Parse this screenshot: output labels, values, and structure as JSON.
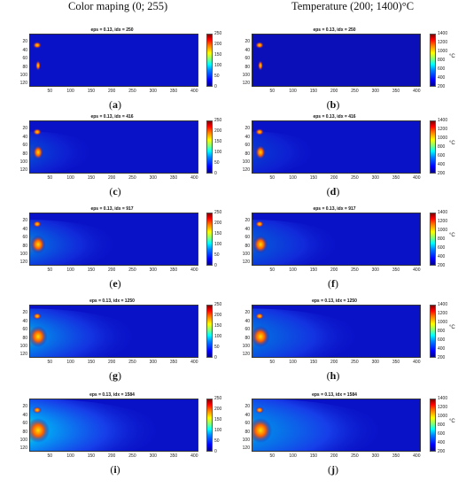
{
  "headers": {
    "left": "Color maping (0; 255)",
    "right": "Temperature (200; 1400)°C"
  },
  "rows": [
    {
      "title": "eps = 0.13, idx = 250",
      "captions": [
        "a",
        "b"
      ],
      "level": 0.0
    },
    {
      "title": "eps = 0.13, idx = 416",
      "captions": [
        "c",
        "d"
      ],
      "level": 0.3
    },
    {
      "title": "eps = 0.13, idx = 917",
      "captions": [
        "e",
        "f"
      ],
      "level": 0.55
    },
    {
      "title": "eps = 0.13, idx = 1250",
      "captions": [
        "g",
        "h"
      ],
      "level": 0.75
    },
    {
      "title": "eps = 0.13, idx = 1584",
      "captions": [
        "i",
        "j"
      ],
      "level": 1.0
    }
  ],
  "y_ticks": [
    "20",
    "40",
    "60",
    "80",
    "100",
    "120"
  ],
  "x_ticks": [
    "50",
    "100",
    "150",
    "200",
    "250",
    "300",
    "350",
    "400"
  ],
  "x_range": [
    1,
    410
  ],
  "y_range": [
    1,
    128
  ],
  "colorbar_left": {
    "ticks": [
      "250",
      "200",
      "150",
      "100",
      "50",
      "0"
    ],
    "range": [
      0,
      255
    ]
  },
  "colorbar_right": {
    "ticks": [
      "1400",
      "1200",
      "1000",
      "800",
      "600",
      "400",
      "200"
    ],
    "range": [
      200,
      1400
    ],
    "unit": "°C"
  },
  "colors": {
    "background_field": "#0a12c8",
    "hot_core": "#b00000",
    "mid": "#ffdd00",
    "cool": "#00ccff"
  }
}
